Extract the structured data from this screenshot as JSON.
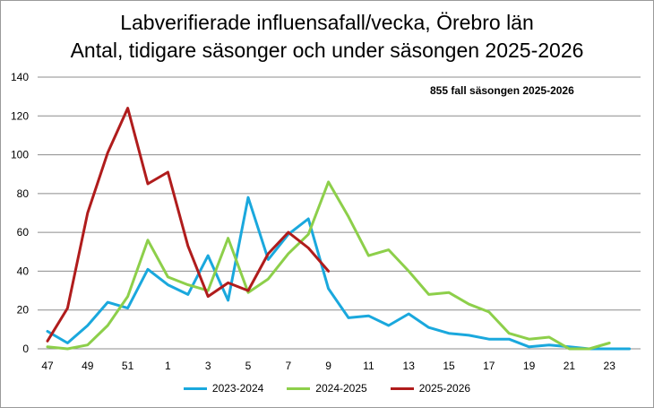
{
  "chart_data": {
    "type": "line",
    "title_line1": "Labverifierade influensafall/vecka, Örebro län",
    "title_line2": "Antal, tidigare säsonger och under säsongen 2025-2026",
    "annotation": "855 fall säsongen 2025-2026",
    "x_ticks": [
      "47",
      "49",
      "51",
      "1",
      "3",
      "5",
      "7",
      "9",
      "11",
      "13",
      "15",
      "17",
      "19",
      "21",
      "23"
    ],
    "ylim": [
      0,
      140
    ],
    "y_ticks": [
      0,
      20,
      40,
      60,
      80,
      100,
      120,
      140
    ],
    "grid": "horizontal",
    "legend_position": "bottom",
    "weeks": [
      "47",
      "48",
      "49",
      "50",
      "51",
      "52",
      "1",
      "2",
      "3",
      "4",
      "5",
      "6",
      "7",
      "8",
      "9",
      "10",
      "11",
      "12",
      "13",
      "14",
      "15",
      "16",
      "17",
      "18",
      "19",
      "20",
      "21",
      "22",
      "23",
      "24"
    ],
    "series": [
      {
        "name": "2023-2024",
        "color": "#1aa8dd",
        "values": [
          9,
          3,
          12,
          24,
          21,
          41,
          33,
          28,
          48,
          25,
          78,
          46,
          59,
          67,
          31,
          16,
          17,
          12,
          18,
          11,
          8,
          7,
          5,
          5,
          1,
          2,
          1,
          0,
          0,
          0
        ]
      },
      {
        "name": "2024-2025",
        "color": "#8dcf4a",
        "values": [
          1,
          0,
          2,
          12,
          27,
          56,
          37,
          33,
          30,
          57,
          29,
          36,
          49,
          59,
          86,
          68,
          48,
          51,
          40,
          28,
          29,
          23,
          19,
          8,
          5,
          6,
          0,
          0,
          3,
          null
        ]
      },
      {
        "name": "2025-2026",
        "color": "#b01c1c",
        "values": [
          4,
          21,
          70,
          101,
          124,
          85,
          91,
          53,
          27,
          34,
          30,
          49,
          60,
          52,
          40,
          null,
          null,
          null,
          null,
          null,
          null,
          null,
          null,
          null,
          null,
          null,
          null,
          null,
          null,
          null
        ]
      }
    ]
  }
}
